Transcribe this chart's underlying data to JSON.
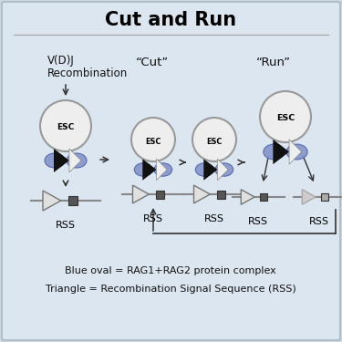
{
  "title": "Cut and Run",
  "bg_color": "#cdd8e3",
  "inner_bg": "#dce6f0",
  "label_vdj_line1": "V(D)J",
  "label_vdj_line2": "Recombination",
  "label_cut": "“Cut”",
  "label_run": "“Run”",
  "label_rss": "RSS",
  "label_esc": "ESC",
  "legend1": "Blue oval = RAG1+RAG2 protein complex",
  "legend2": "Triangle = Recombination Signal Sequence (RSS)",
  "esc_circle_color": "#eeeeee",
  "esc_circle_edge": "#999999",
  "blue_oval_color": "#8899cc",
  "black_tri_color": "#111111",
  "white_tri_color": "#eeeeee",
  "dark_sq_color": "#555555",
  "light_sq_color": "#aaaaaa",
  "arrow_color": "#333333",
  "title_fontsize": 15,
  "label_fontsize": 8.5,
  "rss_fontsize": 8,
  "legend_fontsize": 8
}
